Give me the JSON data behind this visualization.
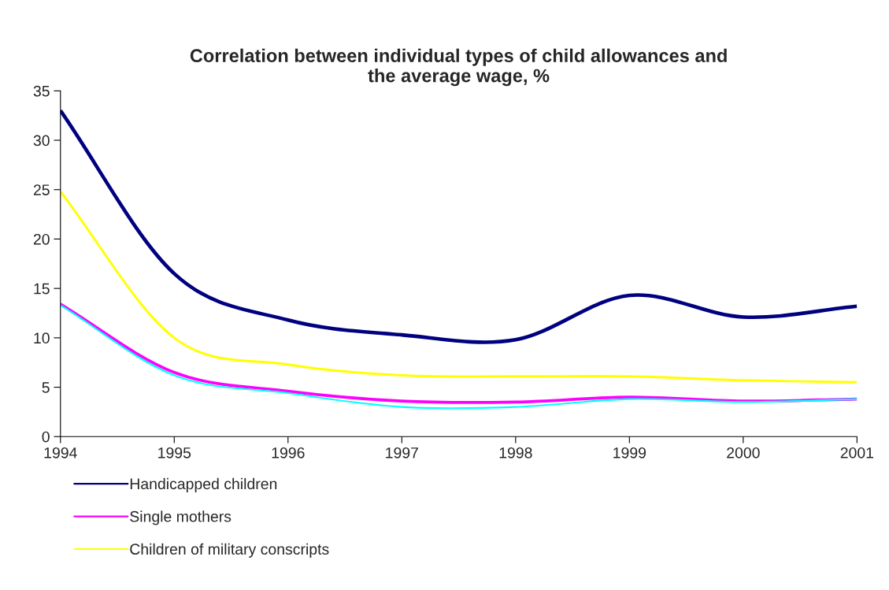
{
  "chart_data": {
    "type": "line",
    "title": "Correlation between individual types of child allowances and\nthe average wage, %",
    "x": [
      1994,
      1995,
      1996,
      1997,
      1998,
      1999,
      2000,
      2001
    ],
    "series": [
      {
        "name": "Handicapped children",
        "color": "#000080",
        "values": [
          33,
          16.5,
          11.8,
          10.3,
          9.8,
          14.3,
          12.1,
          13.2
        ]
      },
      {
        "name": "Single mothers",
        "color": "#ff00ff",
        "values": [
          13.4,
          6.5,
          4.6,
          3.6,
          3.5,
          4.0,
          3.6,
          3.8
        ]
      },
      {
        "name": "Children of military conscripts",
        "color": "#ffff00",
        "values": [
          24.8,
          10,
          7.3,
          6.2,
          6.1,
          6.1,
          5.7,
          5.5
        ]
      },
      {
        "color": "#00ffff",
        "values": [
          13.3,
          6.2,
          4.4,
          3.0,
          3.0,
          3.8,
          3.5,
          3.8
        ]
      }
    ],
    "xlim": [
      1994,
      2001
    ],
    "xticks": [
      1994,
      1995,
      1996,
      1997,
      1998,
      1999,
      2000,
      2001
    ],
    "ylim": [
      0,
      35
    ],
    "yticks": [
      0,
      5,
      10,
      15,
      20,
      25,
      30,
      35
    ],
    "grid": false,
    "legend": "bottom",
    "marker": "none",
    "line_style": "solid"
  }
}
